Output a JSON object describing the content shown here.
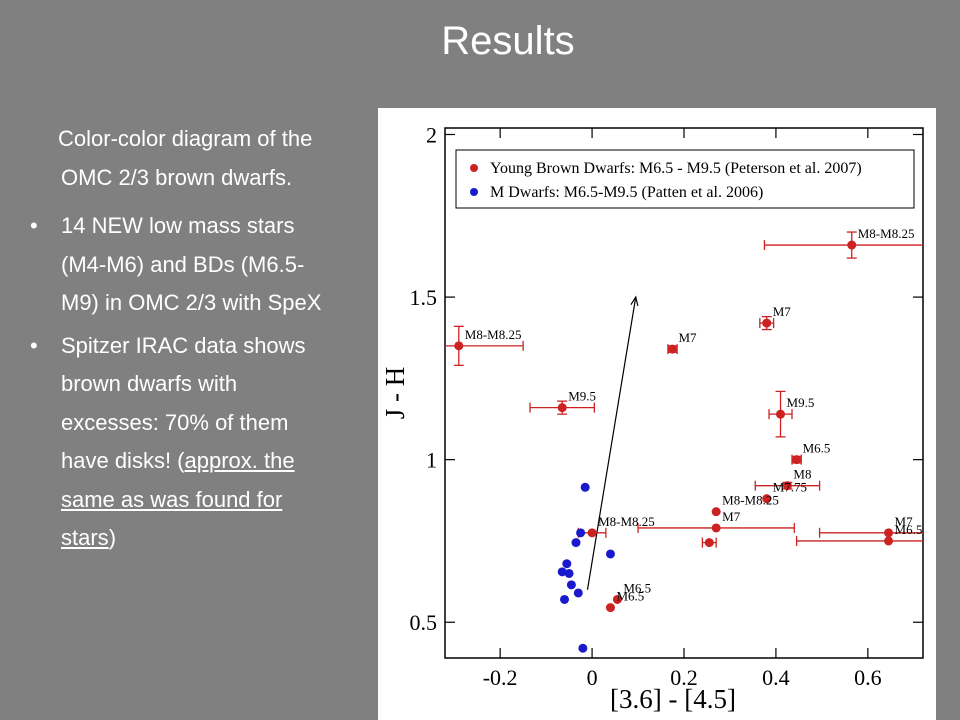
{
  "slide": {
    "title": "Results",
    "intro": "Color-color diagram of the OMC 2/3 brown dwarfs.",
    "bullet_glyph": "•",
    "bullet1": "14 NEW low mass stars (M4-M6) and BDs (M6.5-M9) in OMC 2/3 with SpeX",
    "bullet2_main": "Spitzer IRAC data shows brown dwarfs with excesses: 70% of them have disks! (",
    "bullet2_underlined": "approx. the same as was found for stars",
    "bullet2_end": ")"
  },
  "chart_data": {
    "type": "scatter",
    "xlabel": "[3.6] - [4.5]",
    "ylabel": "J - H",
    "xlim": [
      -0.32,
      0.72
    ],
    "ylim": [
      0.39,
      2.02
    ],
    "x_ticks": [
      -0.2,
      0,
      0.2,
      0.4,
      0.6
    ],
    "x_tick_labels": [
      "-0.2",
      "0",
      "0.2",
      "0.4",
      "0.6"
    ],
    "y_ticks": [
      0.5,
      1,
      1.5,
      2
    ],
    "y_tick_labels": [
      "0.5",
      "1",
      "1.5",
      "2"
    ],
    "grid": false,
    "legend_position": "top",
    "colors": {
      "young": "#cc2222",
      "mdwarf": "#1a1acc",
      "axis": "#000000"
    },
    "series": [
      {
        "name": "Young Brown Dwarfs: M6.5 - M9.5 (Peterson et al. 2007)",
        "points": [
          {
            "x": -0.29,
            "y": 1.35,
            "xerr": 0.14,
            "yerr": 0.06,
            "label": "M8-M8.25"
          },
          {
            "x": -0.065,
            "y": 1.16,
            "xerr": 0.07,
            "yerr": 0.02,
            "label": "M9.5"
          },
          {
            "x": 0.175,
            "y": 1.34,
            "xerr": 0.01,
            "yerr": 0.01,
            "label": "M7"
          },
          {
            "x": 0.38,
            "y": 1.42,
            "xerr": 0.015,
            "yerr": 0.02,
            "label": "M7"
          },
          {
            "x": 0.565,
            "y": 1.66,
            "xerr": 0.19,
            "yerr": 0.04,
            "label": "M8-M8.25"
          },
          {
            "x": 0.41,
            "y": 1.14,
            "xerr": 0.025,
            "yerr": 0.07,
            "label": "M9.5"
          },
          {
            "x": 0.445,
            "y": 1.0,
            "xerr": 0.01,
            "yerr": 0.01,
            "label": "M6.5"
          },
          {
            "x": 0.425,
            "y": 0.92,
            "xerr": 0.07,
            "yerr": 0.01,
            "label": "M8"
          },
          {
            "x": 0.38,
            "y": 0.88,
            "xerr": 0.0,
            "yerr": 0.0,
            "label": "M7.75"
          },
          {
            "x": 0.27,
            "y": 0.84,
            "xerr": 0.0,
            "yerr": 0.0,
            "label": "M8-M8.25"
          },
          {
            "x": 0.27,
            "y": 0.79,
            "xerr": 0.17,
            "yerr": 0.0,
            "label": "M7"
          },
          {
            "x": 0.255,
            "y": 0.745,
            "xerr": 0.015,
            "yerr": 0.0,
            "label": ""
          },
          {
            "x": 0.0,
            "y": 0.775,
            "xerr": 0.03,
            "yerr": 0.0,
            "label": "M8-M8.25"
          },
          {
            "x": 0.645,
            "y": 0.775,
            "xerr": 0.15,
            "yerr": 0.0,
            "label": "M7"
          },
          {
            "x": 0.645,
            "y": 0.75,
            "xerr": 0.2,
            "yerr": 0.0,
            "label": "M6.5"
          },
          {
            "x": 0.055,
            "y": 0.57,
            "xerr": 0.0,
            "yerr": 0.0,
            "label": "M6.5"
          },
          {
            "x": 0.04,
            "y": 0.545,
            "xerr": 0.0,
            "yerr": 0.0,
            "label": "M6.5"
          }
        ]
      },
      {
        "name": "M Dwarfs: M6.5-M9.5 (Patten et al. 2006)",
        "points": [
          {
            "x": -0.015,
            "y": 0.915
          },
          {
            "x": -0.025,
            "y": 0.775
          },
          {
            "x": -0.035,
            "y": 0.745
          },
          {
            "x": 0.04,
            "y": 0.71
          },
          {
            "x": -0.055,
            "y": 0.68
          },
          {
            "x": -0.065,
            "y": 0.655
          },
          {
            "x": -0.05,
            "y": 0.65
          },
          {
            "x": -0.045,
            "y": 0.615
          },
          {
            "x": -0.03,
            "y": 0.59
          },
          {
            "x": -0.06,
            "y": 0.57
          },
          {
            "x": -0.02,
            "y": 0.42
          }
        ]
      }
    ],
    "arrow": {
      "from": [
        -0.01,
        0.6
      ],
      "to": [
        0.095,
        1.5
      ]
    }
  }
}
